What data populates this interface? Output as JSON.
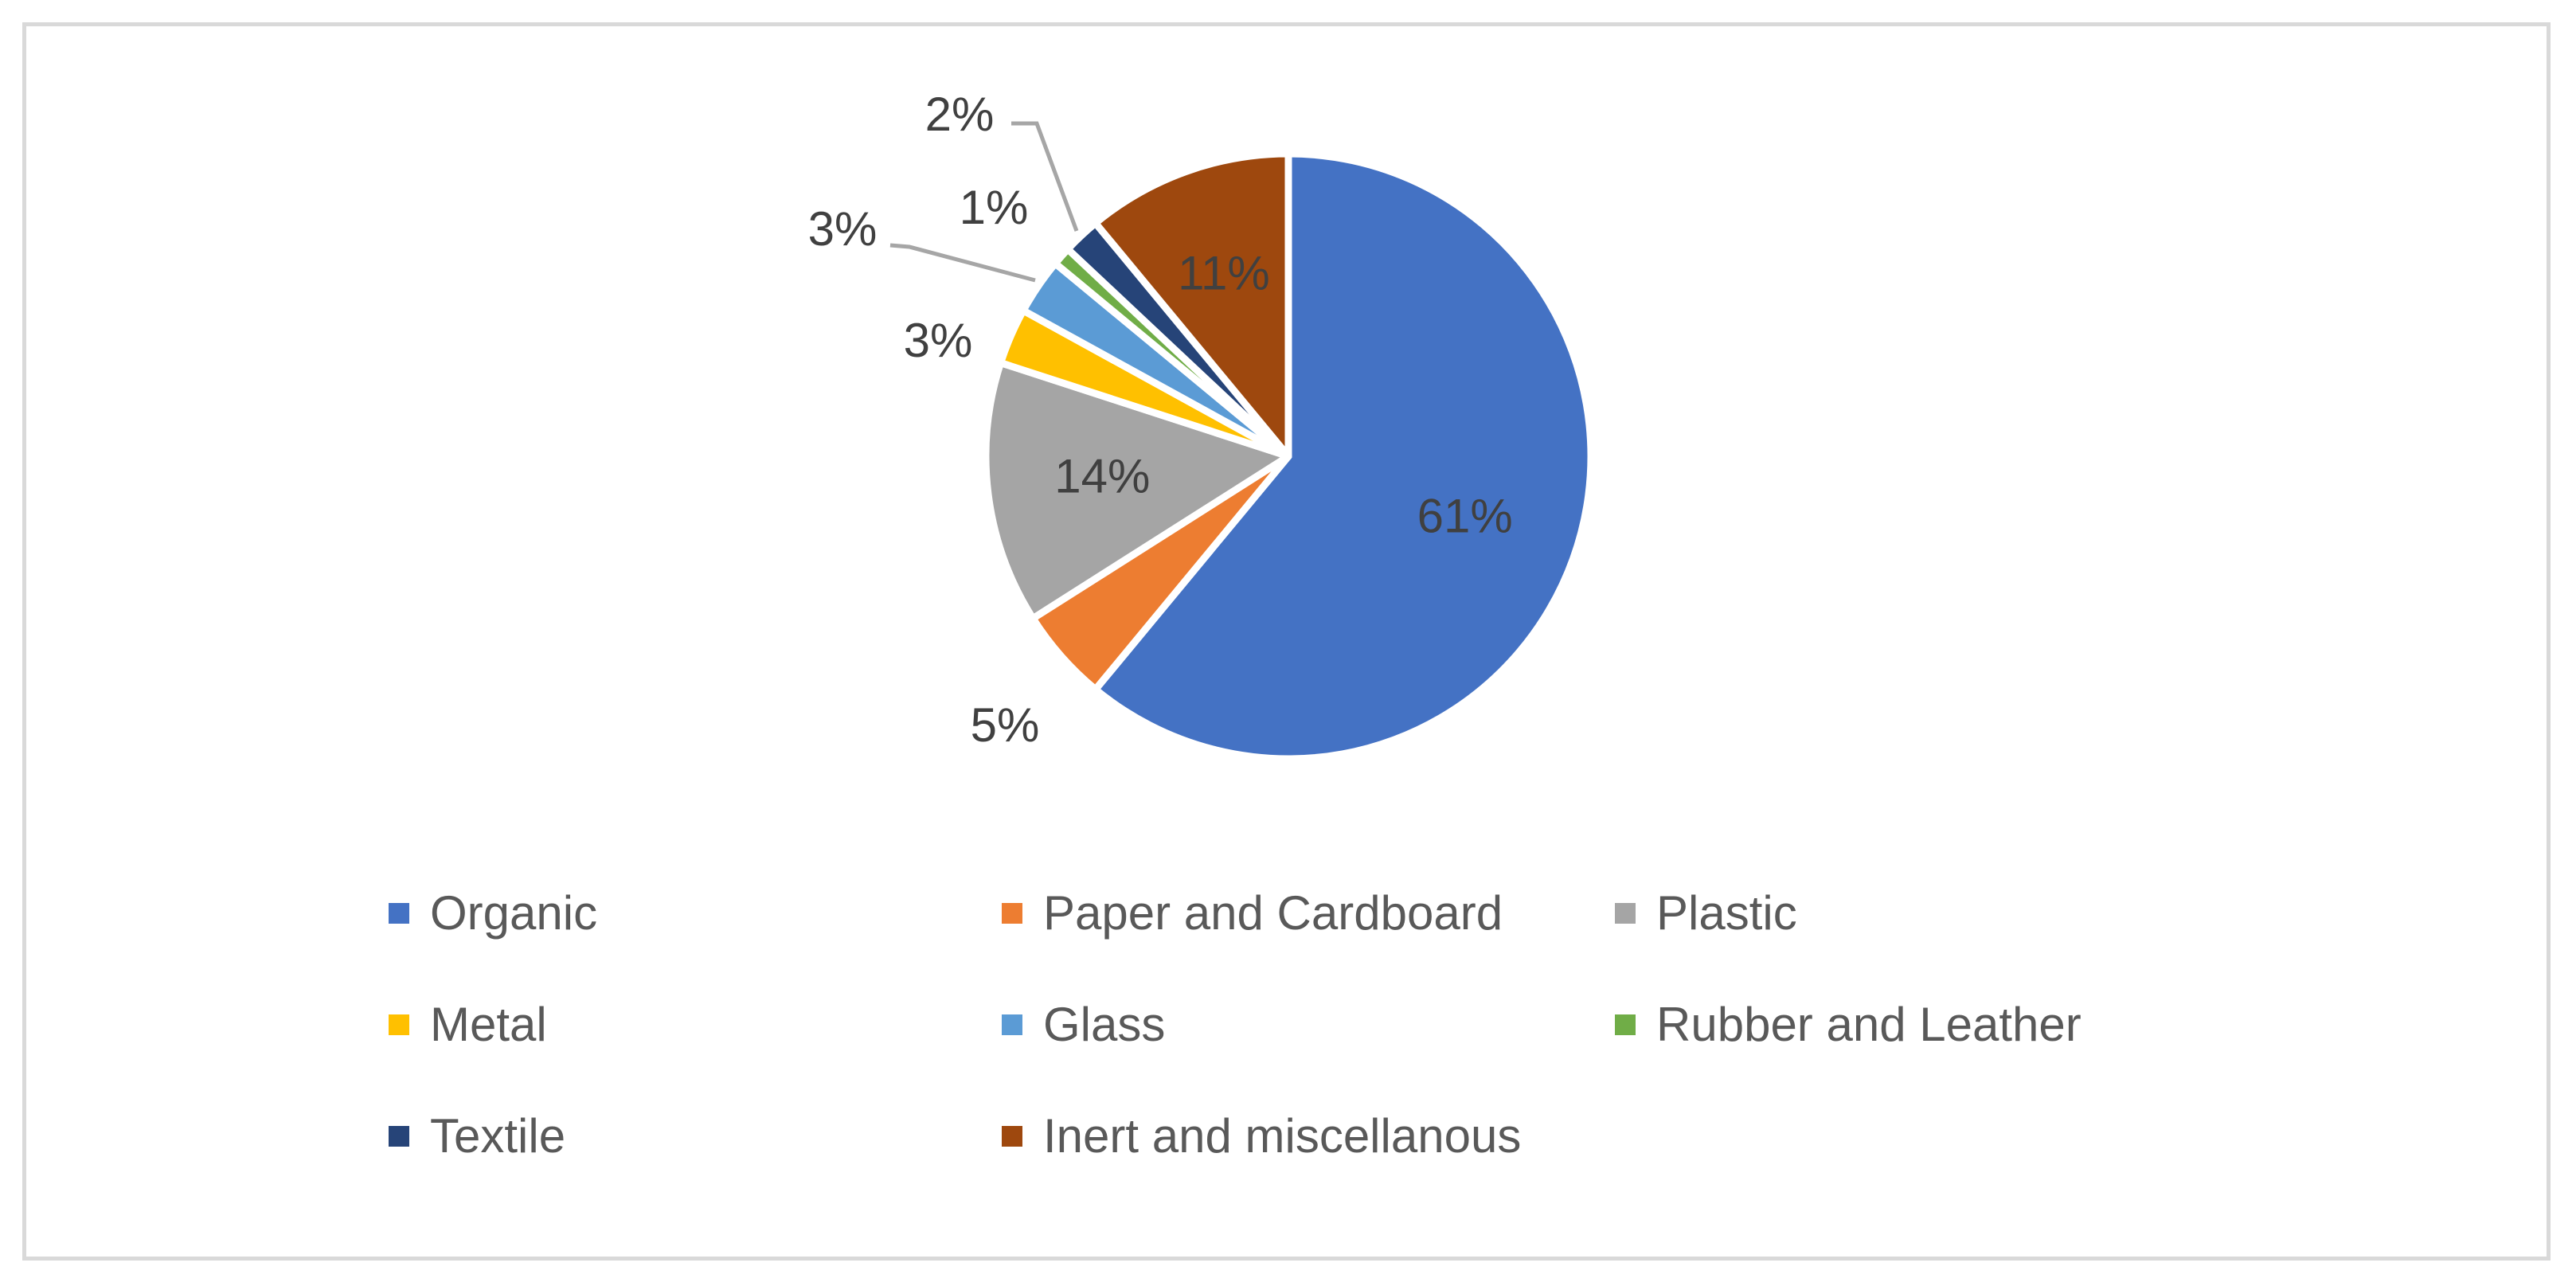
{
  "chart_data": {
    "type": "pie",
    "title": "",
    "slices": [
      {
        "name": "Organic",
        "value": 61,
        "label": "61%",
        "color": "#4472C4"
      },
      {
        "name": "Paper and Cardboard",
        "value": 5,
        "label": "5%",
        "color": "#ED7D31"
      },
      {
        "name": "Plastic",
        "value": 14,
        "label": "14%",
        "color": "#A5A5A5"
      },
      {
        "name": "Metal",
        "value": 3,
        "label": "3%",
        "color": "#FFC000"
      },
      {
        "name": "Glass",
        "value": 3,
        "label": "3%",
        "color": "#5B9BD5"
      },
      {
        "name": "Rubber and Leather",
        "value": 1,
        "label": "1%",
        "color": "#70AD47"
      },
      {
        "name": "Textile",
        "value": 2,
        "label": "2%",
        "color": "#264478"
      },
      {
        "name": "Inert and miscellanous",
        "value": 11,
        "label": "11%",
        "color": "#9E480E"
      }
    ],
    "legend_position": "bottom",
    "legend": [
      "Organic",
      "Paper and Cardboard",
      "Plastic",
      "Metal",
      "Glass",
      "Rubber and Leather",
      "Textile",
      "Inert and miscellanous"
    ]
  }
}
